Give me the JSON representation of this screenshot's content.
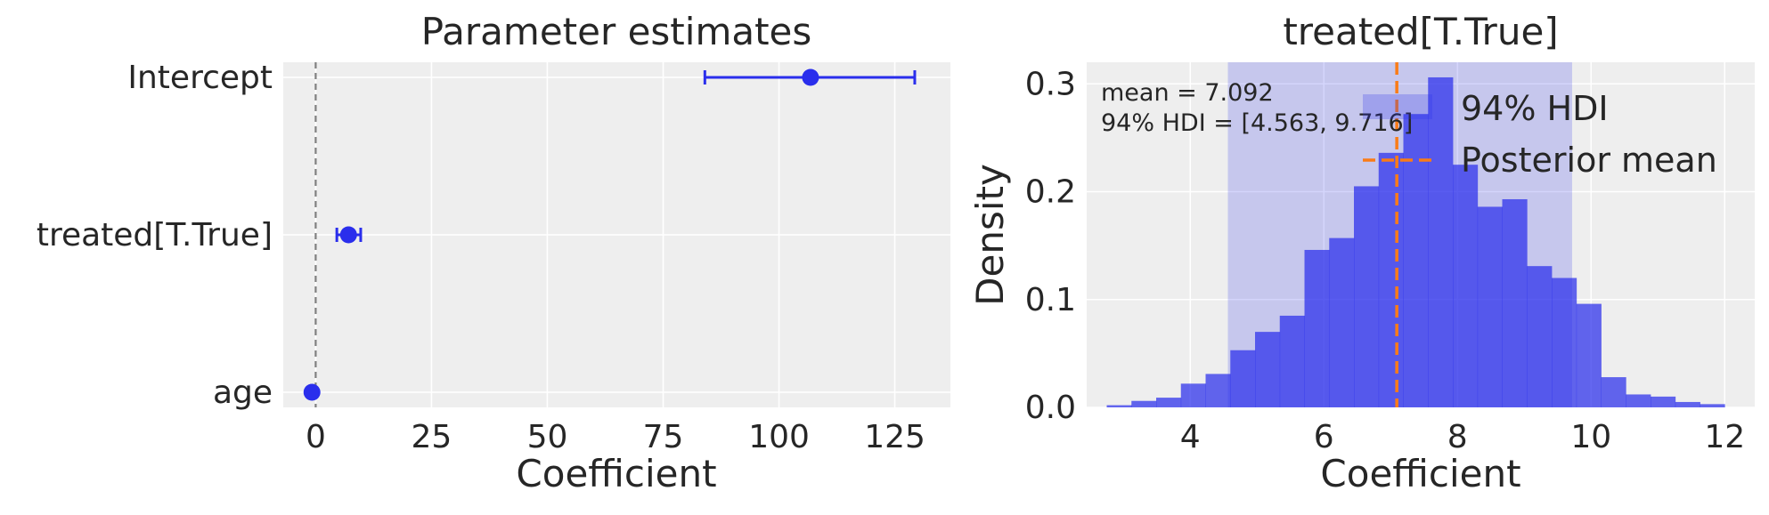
{
  "chart_data": [
    {
      "type": "scatter",
      "title": "Parameter estimates",
      "xlabel": "Coefficient",
      "ylabel": "",
      "xlim": [
        -7,
        137
      ],
      "xticks": [
        0,
        25,
        50,
        75,
        100,
        125
      ],
      "xtick_labels": [
        "0",
        "25",
        "50",
        "75",
        "100",
        "125"
      ],
      "grid": true,
      "reference_line": 0,
      "parameters": [
        {
          "label": "Intercept",
          "mean": 106.8,
          "hdi_low": 84.0,
          "hdi_high": 129.3
        },
        {
          "label": "treated[T.True]",
          "mean": 7.092,
          "hdi_low": 4.563,
          "hdi_high": 9.716
        },
        {
          "label": "age",
          "mean": -0.8,
          "hdi_low": -1.0,
          "hdi_high": -0.6
        }
      ],
      "colors": {
        "point": "#2a2eec",
        "reference": "#808080"
      }
    },
    {
      "type": "bar",
      "title": "treated[T.True]",
      "xlabel": "Coefficient",
      "ylabel": "Density",
      "xlim": [
        2.45,
        12.45
      ],
      "ylim": [
        0,
        0.32
      ],
      "xticks": [
        4,
        6,
        8,
        10,
        12
      ],
      "xtick_labels": [
        "4",
        "6",
        "8",
        "10",
        "12"
      ],
      "yticks": [
        0,
        0.1,
        0.2,
        0.3
      ],
      "ytick_labels": [
        "0.0",
        "0.1",
        "0.2",
        "0.3"
      ],
      "grid": true,
      "bin_edges": [
        2.75,
        3.12,
        3.49,
        3.86,
        4.23,
        4.6,
        4.97,
        5.34,
        5.71,
        6.08,
        6.45,
        6.82,
        7.19,
        7.56,
        7.93,
        8.3,
        8.67,
        9.04,
        9.41,
        9.78,
        10.15,
        10.52,
        10.89,
        11.26,
        11.63,
        12.0
      ],
      "densities": [
        0.002,
        0.006,
        0.009,
        0.022,
        0.031,
        0.053,
        0.07,
        0.085,
        0.146,
        0.157,
        0.205,
        0.236,
        0.272,
        0.306,
        0.225,
        0.186,
        0.193,
        0.131,
        0.12,
        0.096,
        0.028,
        0.012,
        0.01,
        0.005,
        0.003
      ],
      "hdi": [
        4.563,
        9.716
      ],
      "hdi_label": "94% HDI",
      "mean": 7.092,
      "mean_label": "Posterior mean",
      "annotation": {
        "line1": "mean = 7.092",
        "line2": "94% HDI = [4.563, 9.716]"
      },
      "legend_placement": "top-right",
      "colors": {
        "bars": "#2a2eec",
        "hdi": "#2a2eec",
        "mean": "#fa7c17"
      }
    }
  ]
}
